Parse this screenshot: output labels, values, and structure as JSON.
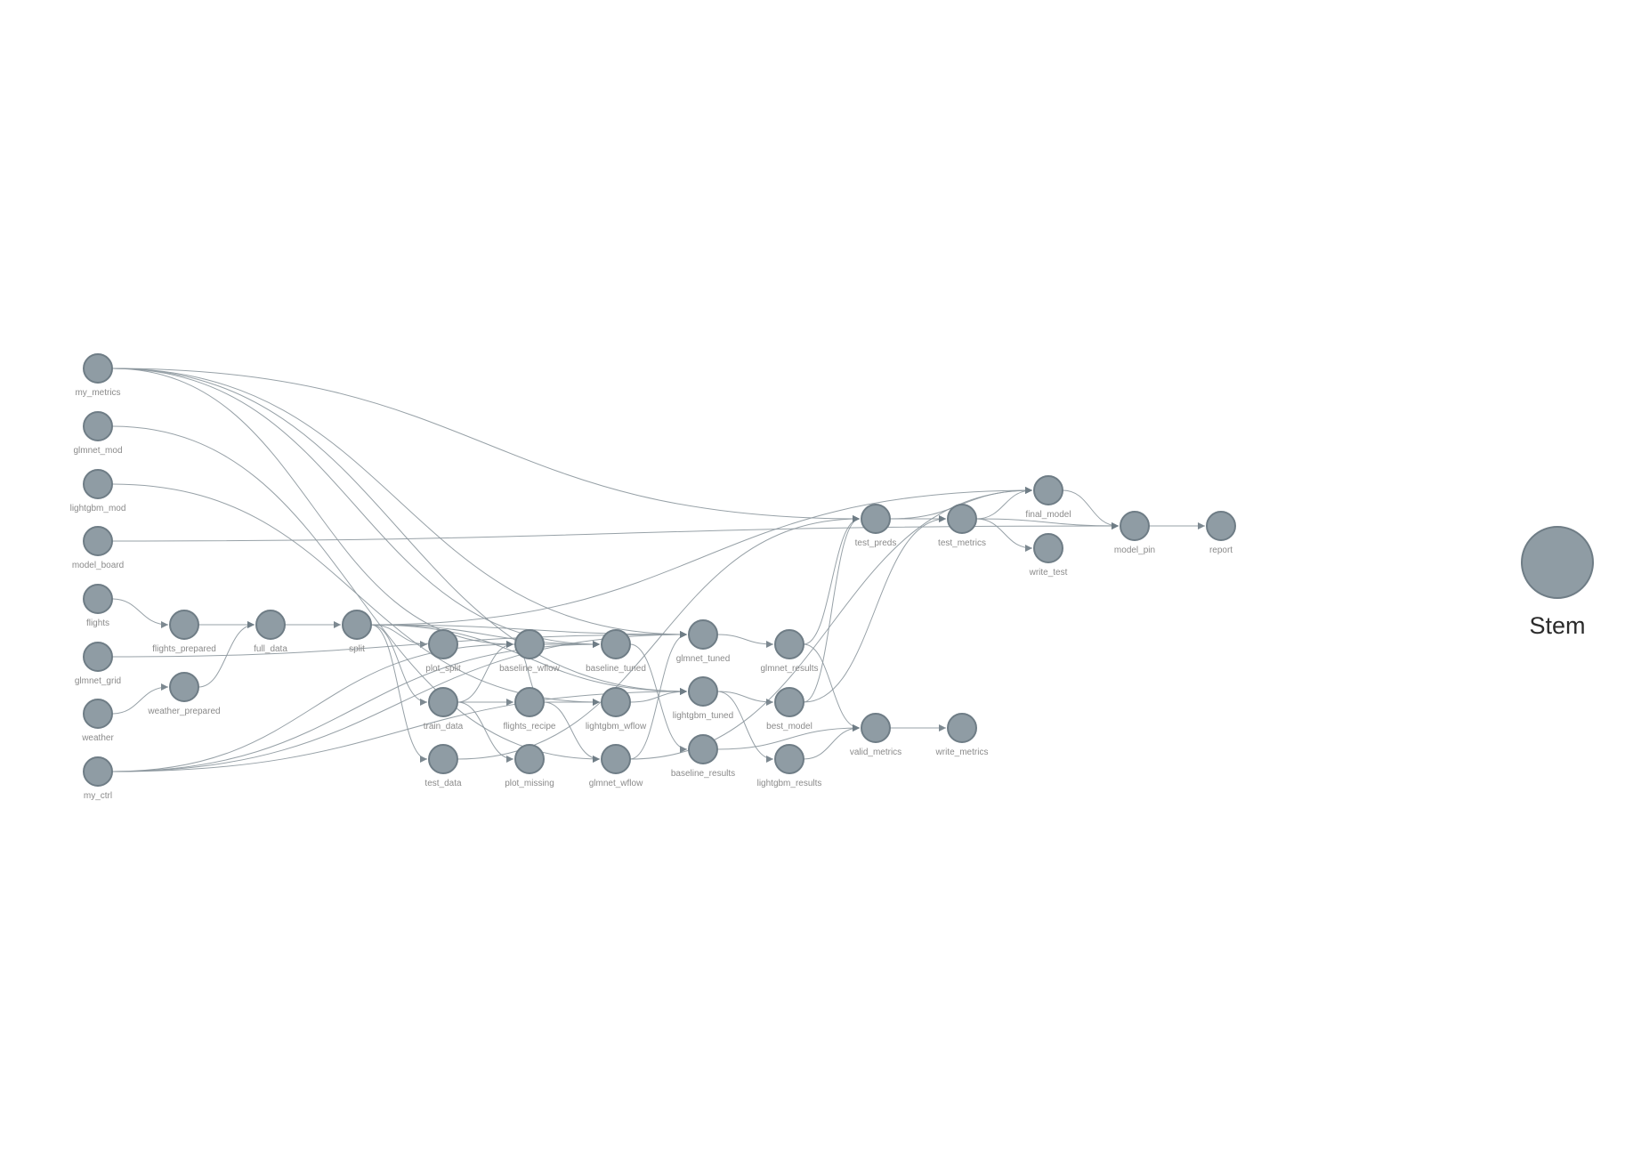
{
  "colors": {
    "node_fill": "#8f9ca4",
    "node_stroke": "#6f7d86",
    "edge": "#8c979e"
  },
  "legend": {
    "label": "Stem",
    "icon": "stem-node-icon"
  },
  "nodes": [
    {
      "id": "my_metrics",
      "label": "my_metrics"
    },
    {
      "id": "glmnet_mod",
      "label": "glmnet_mod"
    },
    {
      "id": "lightgbm_mod",
      "label": "lightgbm_mod"
    },
    {
      "id": "model_board",
      "label": "model_board"
    },
    {
      "id": "flights",
      "label": "flights"
    },
    {
      "id": "glmnet_grid",
      "label": "glmnet_grid"
    },
    {
      "id": "weather",
      "label": "weather"
    },
    {
      "id": "my_ctrl",
      "label": "my_ctrl"
    },
    {
      "id": "flights_prepared",
      "label": "flights_prepared"
    },
    {
      "id": "weather_prepared",
      "label": "weather_prepared"
    },
    {
      "id": "full_data",
      "label": "full_data"
    },
    {
      "id": "split",
      "label": "split"
    },
    {
      "id": "plot_split",
      "label": "plot_split"
    },
    {
      "id": "train_data",
      "label": "train_data"
    },
    {
      "id": "test_data",
      "label": "test_data"
    },
    {
      "id": "baseline_wflow",
      "label": "baseline_wflow"
    },
    {
      "id": "flights_recipe",
      "label": "flights_recipe"
    },
    {
      "id": "plot_missing",
      "label": "plot_missing"
    },
    {
      "id": "baseline_tuned",
      "label": "baseline_tuned"
    },
    {
      "id": "lightgbm_wflow",
      "label": "lightgbm_wflow"
    },
    {
      "id": "glmnet_wflow",
      "label": "glmnet_wflow"
    },
    {
      "id": "glmnet_tuned",
      "label": "glmnet_tuned"
    },
    {
      "id": "lightgbm_tuned",
      "label": "lightgbm_tuned"
    },
    {
      "id": "baseline_results",
      "label": "baseline_results"
    },
    {
      "id": "glmnet_results",
      "label": "glmnet_results"
    },
    {
      "id": "best_model",
      "label": "best_model"
    },
    {
      "id": "lightgbm_results",
      "label": "lightgbm_results"
    },
    {
      "id": "test_preds",
      "label": "test_preds"
    },
    {
      "id": "valid_metrics",
      "label": "valid_metrics"
    },
    {
      "id": "test_metrics",
      "label": "test_metrics"
    },
    {
      "id": "write_metrics",
      "label": "write_metrics"
    },
    {
      "id": "final_model",
      "label": "final_model"
    },
    {
      "id": "write_test",
      "label": "write_test"
    },
    {
      "id": "model_pin",
      "label": "model_pin"
    },
    {
      "id": "report",
      "label": "report"
    }
  ],
  "edges": [
    [
      "flights",
      "flights_prepared"
    ],
    [
      "weather",
      "weather_prepared"
    ],
    [
      "flights_prepared",
      "full_data"
    ],
    [
      "weather_prepared",
      "full_data"
    ],
    [
      "full_data",
      "split"
    ],
    [
      "split",
      "plot_split"
    ],
    [
      "split",
      "train_data"
    ],
    [
      "split",
      "test_data"
    ],
    [
      "split",
      "baseline_tuned"
    ],
    [
      "split",
      "glmnet_tuned"
    ],
    [
      "split",
      "lightgbm_tuned"
    ],
    [
      "split",
      "final_model"
    ],
    [
      "glmnet_grid",
      "glmnet_tuned"
    ],
    [
      "my_metrics",
      "baseline_tuned"
    ],
    [
      "my_metrics",
      "glmnet_tuned"
    ],
    [
      "my_metrics",
      "lightgbm_tuned"
    ],
    [
      "my_metrics",
      "test_preds"
    ],
    [
      "my_metrics",
      "baseline_wflow"
    ],
    [
      "glmnet_mod",
      "glmnet_wflow"
    ],
    [
      "lightgbm_mod",
      "lightgbm_wflow"
    ],
    [
      "model_board",
      "model_pin"
    ],
    [
      "my_ctrl",
      "baseline_tuned"
    ],
    [
      "my_ctrl",
      "glmnet_tuned"
    ],
    [
      "my_ctrl",
      "lightgbm_tuned"
    ],
    [
      "my_ctrl",
      "baseline_wflow"
    ],
    [
      "train_data",
      "flights_recipe"
    ],
    [
      "train_data",
      "plot_missing"
    ],
    [
      "train_data",
      "baseline_wflow"
    ],
    [
      "flights_recipe",
      "baseline_wflow"
    ],
    [
      "flights_recipe",
      "lightgbm_wflow"
    ],
    [
      "flights_recipe",
      "glmnet_wflow"
    ],
    [
      "baseline_wflow",
      "baseline_tuned"
    ],
    [
      "lightgbm_wflow",
      "lightgbm_tuned"
    ],
    [
      "glmnet_wflow",
      "glmnet_tuned"
    ],
    [
      "glmnet_wflow",
      "final_model"
    ],
    [
      "baseline_tuned",
      "baseline_results"
    ],
    [
      "glmnet_tuned",
      "glmnet_results"
    ],
    [
      "lightgbm_tuned",
      "lightgbm_results"
    ],
    [
      "lightgbm_tuned",
      "best_model"
    ],
    [
      "glmnet_results",
      "valid_metrics"
    ],
    [
      "baseline_results",
      "valid_metrics"
    ],
    [
      "lightgbm_results",
      "valid_metrics"
    ],
    [
      "best_model",
      "test_preds"
    ],
    [
      "best_model",
      "test_metrics"
    ],
    [
      "glmnet_results",
      "test_preds"
    ],
    [
      "test_data",
      "test_preds"
    ],
    [
      "valid_metrics",
      "write_metrics"
    ],
    [
      "test_preds",
      "test_metrics"
    ],
    [
      "test_metrics",
      "write_test"
    ],
    [
      "test_metrics",
      "final_model"
    ],
    [
      "test_preds",
      "final_model"
    ],
    [
      "final_model",
      "model_pin"
    ],
    [
      "test_metrics",
      "model_pin"
    ],
    [
      "model_pin",
      "report"
    ]
  ]
}
